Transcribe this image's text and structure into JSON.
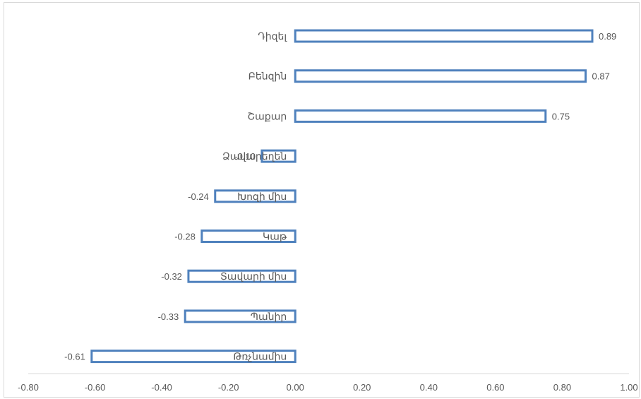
{
  "chart_data": {
    "type": "bar",
    "orientation": "horizontal",
    "categories": [
      "Դիզել",
      "Բենզին",
      "Շաքար",
      "Ձավարեղեն",
      "Խոզի միս",
      "Կաթ",
      "Տավարի միս",
      "Պանիր",
      "Թռչնամիս"
    ],
    "values": [
      0.89,
      0.87,
      0.75,
      -0.1,
      -0.24,
      -0.28,
      -0.32,
      -0.33,
      -0.61
    ],
    "data_labels": [
      "0.89",
      "0.87",
      "0.75",
      "-0.10",
      "-0.24",
      "-0.28",
      "-0.32",
      "-0.33",
      "-0.61"
    ],
    "xlim": [
      -0.8,
      1.0
    ],
    "x_ticks": [
      "-0.80",
      "-0.60",
      "-0.40",
      "-0.20",
      "0.00",
      "0.20",
      "0.40",
      "0.60",
      "0.80",
      "1.00"
    ],
    "grid": false,
    "colors": {
      "bar_outline": "#4f81bd",
      "bar_fill": "#ffffff",
      "text": "#595959",
      "axis": "#d9d9d9"
    }
  }
}
